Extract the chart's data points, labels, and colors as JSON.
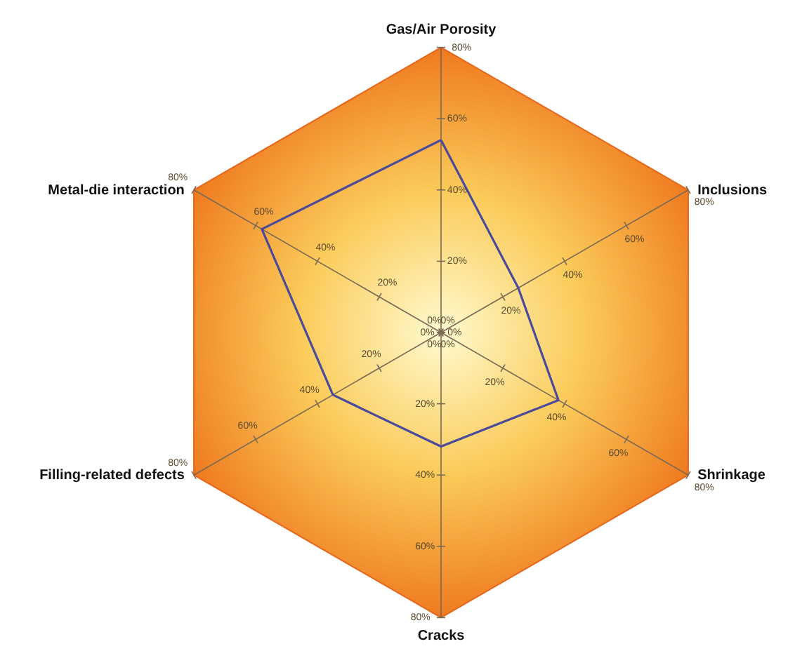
{
  "chart_data": {
    "type": "radar",
    "categories": [
      "Gas/Air Porosity",
      "Inclusions",
      "Shrinkage",
      "Cracks",
      "Filling-related defects",
      "Metal-die interaction"
    ],
    "series": [
      {
        "color": "#4b4a9a",
        "values": [
          54,
          25,
          38,
          32,
          35,
          58
        ]
      }
    ],
    "ylim": [
      0,
      80
    ],
    "yticks": [
      {
        "value": 0,
        "label": "0%"
      },
      {
        "value": 20,
        "label": "20%"
      },
      {
        "value": 40,
        "label": "40%"
      },
      {
        "value": 60,
        "label": "60%"
      },
      {
        "value": 80,
        "label": "80%"
      }
    ]
  }
}
